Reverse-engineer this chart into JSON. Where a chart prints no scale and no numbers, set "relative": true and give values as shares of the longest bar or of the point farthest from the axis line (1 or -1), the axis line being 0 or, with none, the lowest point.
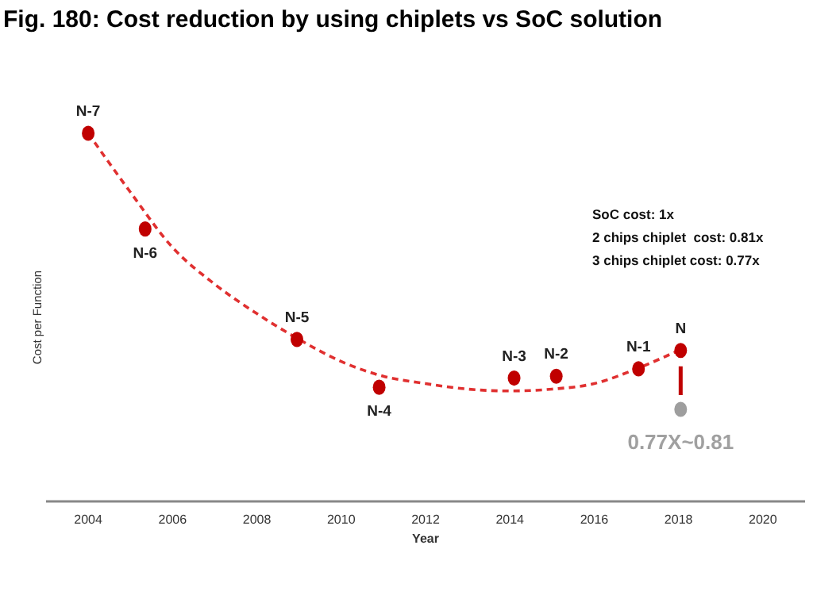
{
  "chart_data": {
    "type": "scatter",
    "title": "Fig. 180: Cost reduction by using chiplets vs SoC solution",
    "xlabel": "Year",
    "ylabel": "Cost per Function",
    "relative": true,
    "xlim": [
      2003,
      2021
    ],
    "xticks": [
      2004,
      2006,
      2008,
      2010,
      2012,
      2014,
      2016,
      2018,
      2020
    ],
    "grid": false,
    "marker": "circle",
    "series": [
      {
        "type": "line",
        "line_style": "dashed",
        "marker": "none",
        "color": "#e03030",
        "x": [
          2004,
          2005,
          2006,
          2007,
          2008,
          2009,
          2010,
          2011,
          2012,
          2013,
          2014,
          2015,
          2016,
          2017,
          2018
        ],
        "values": [
          1.0,
          0.84,
          0.69,
          0.59,
          0.51,
          0.44,
          0.38,
          0.34,
          0.32,
          0.305,
          0.3,
          0.305,
          0.32,
          0.36,
          0.41
        ]
      },
      {
        "color": "#c00000",
        "x": [
          2004.0,
          2005.35,
          2008.95,
          2010.9,
          2014.1,
          2015.1,
          2017.05,
          2018.05
        ],
        "values": [
          1.0,
          0.74,
          0.44,
          0.31,
          0.335,
          0.34,
          0.36,
          0.41
        ]
      },
      {
        "color": "#9e9e9e",
        "x": [
          2018.05
        ],
        "values": [
          0.25
        ]
      }
    ],
    "annotations": [
      {
        "text": "N-7",
        "x": 2004.0,
        "y": 1.0
      },
      {
        "text": "N-6",
        "x": 2005.35,
        "y": 0.74
      },
      {
        "text": "N-5",
        "x": 2008.95,
        "y": 0.44
      },
      {
        "text": "N-4",
        "x": 2010.9,
        "y": 0.31
      },
      {
        "text": "N-3",
        "x": 2014.1,
        "y": 0.335
      },
      {
        "text": "N-2",
        "x": 2015.1,
        "y": 0.34
      },
      {
        "text": "N-1",
        "x": 2017.05,
        "y": 0.36
      },
      {
        "text": "N",
        "x": 2018.05,
        "y": 0.41
      },
      {
        "text": "0.77X~0.81",
        "x": 2018.05,
        "y": 0.25
      },
      "SoC cost: 1x",
      "2 chips chiplet  cost: 0.81x",
      "3 chips chiplet cost: 0.77x"
    ]
  }
}
